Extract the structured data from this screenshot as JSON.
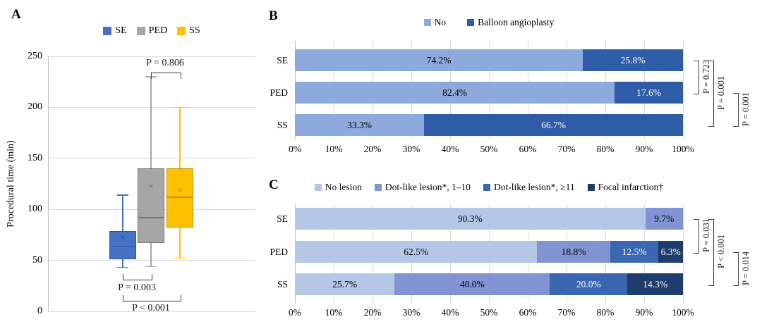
{
  "panels": {
    "a": "A",
    "b": "B",
    "c": "C"
  },
  "chart_data": [
    {
      "panel": "A",
      "type": "boxplot",
      "title": "",
      "ylabel": "Procedural time (min)",
      "ylim": [
        0,
        250
      ],
      "yticks": [
        0,
        50,
        100,
        150,
        200,
        250
      ],
      "grid": "horizontal",
      "legend_position": "top",
      "groups": [
        {
          "name": "SE",
          "color": "#4472C4",
          "border": "#2F5597",
          "min": 43,
          "q1": 51,
          "median": 64,
          "mean": 72,
          "q3": 79,
          "max": 114
        },
        {
          "name": "PED",
          "color": "#A6A6A6",
          "border": "#757575",
          "min": 44,
          "q1": 67,
          "median": 92,
          "mean": 122,
          "q3": 140,
          "max": 230
        },
        {
          "name": "SS",
          "color": "#FFC000",
          "border": "#BF8F00",
          "min": 52,
          "q1": 82,
          "median": 112,
          "mean": 118,
          "q3": 140,
          "max": 200
        }
      ],
      "comparisons": [
        {
          "between": [
            "PED",
            "SS"
          ],
          "label": "P = 0.806",
          "position": "top"
        },
        {
          "between": [
            "SE",
            "PED"
          ],
          "label": "P = 0.003",
          "position": "bottom"
        },
        {
          "between": [
            "SE",
            "SS"
          ],
          "label": "P < 0.001",
          "position": "bottom"
        }
      ]
    },
    {
      "panel": "B",
      "type": "stacked-bar-100",
      "orientation": "horizontal",
      "categories": [
        "SE",
        "PED",
        "SS"
      ],
      "series": [
        {
          "name": "No",
          "color": "#8EA9DB",
          "label_color": "#000000",
          "values": [
            74.2,
            82.4,
            33.3
          ]
        },
        {
          "name": "Balloon angioplasty",
          "color": "#2E5CA6",
          "label_color": "#FFFFFF",
          "values": [
            25.8,
            17.6,
            66.7
          ]
        }
      ],
      "labels": [
        [
          "74.2%",
          "25.8%"
        ],
        [
          "82.4%",
          "17.6%"
        ],
        [
          "33.3%",
          "66.7%"
        ]
      ],
      "xticks": [
        "0%",
        "10%",
        "20%",
        "30%",
        "40%",
        "50%",
        "60%",
        "70%",
        "80%",
        "90%",
        "100%"
      ],
      "xlim": [
        0,
        100
      ],
      "grid": "vertical",
      "legend_position": "top",
      "comparisons": [
        {
          "between": [
            "SE",
            "PED"
          ],
          "label": "P = 0.723"
        },
        {
          "between": [
            "SE",
            "SS"
          ],
          "label": "P = 0.001"
        },
        {
          "between": [
            "PED",
            "SS"
          ],
          "label": "P = 0.001"
        }
      ]
    },
    {
      "panel": "C",
      "type": "stacked-bar-100",
      "orientation": "horizontal",
      "categories": [
        "SE",
        "PED",
        "SS"
      ],
      "series": [
        {
          "name": "No lesion",
          "color": "#B4C7E7",
          "label_color": "#000000",
          "values": [
            90.3,
            62.5,
            25.7
          ]
        },
        {
          "name": "Dot-like lesion*, 1–10",
          "color": "#8293D3",
          "label_color": "#000000",
          "values": [
            9.7,
            18.8,
            40.0
          ]
        },
        {
          "name": "Dot-like lesion*, ≥11",
          "color": "#3A66B2",
          "label_color": "#FFFFFF",
          "values": [
            0,
            12.5,
            20.0
          ]
        },
        {
          "name": "Focal infarction†",
          "color": "#1F3C6E",
          "label_color": "#FFFFFF",
          "values": [
            0,
            6.3,
            14.3
          ]
        }
      ],
      "labels": [
        [
          "90.3%",
          "9.7%",
          "",
          ""
        ],
        [
          "62.5%",
          "18.8%",
          "12.5%",
          "6.3%"
        ],
        [
          "25.7%",
          "40.0%",
          "20.0%",
          "14.3%"
        ]
      ],
      "xticks": [
        "0%",
        "10%",
        "20%",
        "30%",
        "40%",
        "50%",
        "60%",
        "70%",
        "80%",
        "90%",
        "100%"
      ],
      "xlim": [
        0,
        100
      ],
      "grid": "vertical",
      "legend_position": "top",
      "comparisons": [
        {
          "between": [
            "SE",
            "PED"
          ],
          "label": "P = 0.031"
        },
        {
          "between": [
            "SE",
            "SS"
          ],
          "label": "P < 0.001"
        },
        {
          "between": [
            "PED",
            "SS"
          ],
          "label": "P = 0.014"
        }
      ]
    }
  ]
}
